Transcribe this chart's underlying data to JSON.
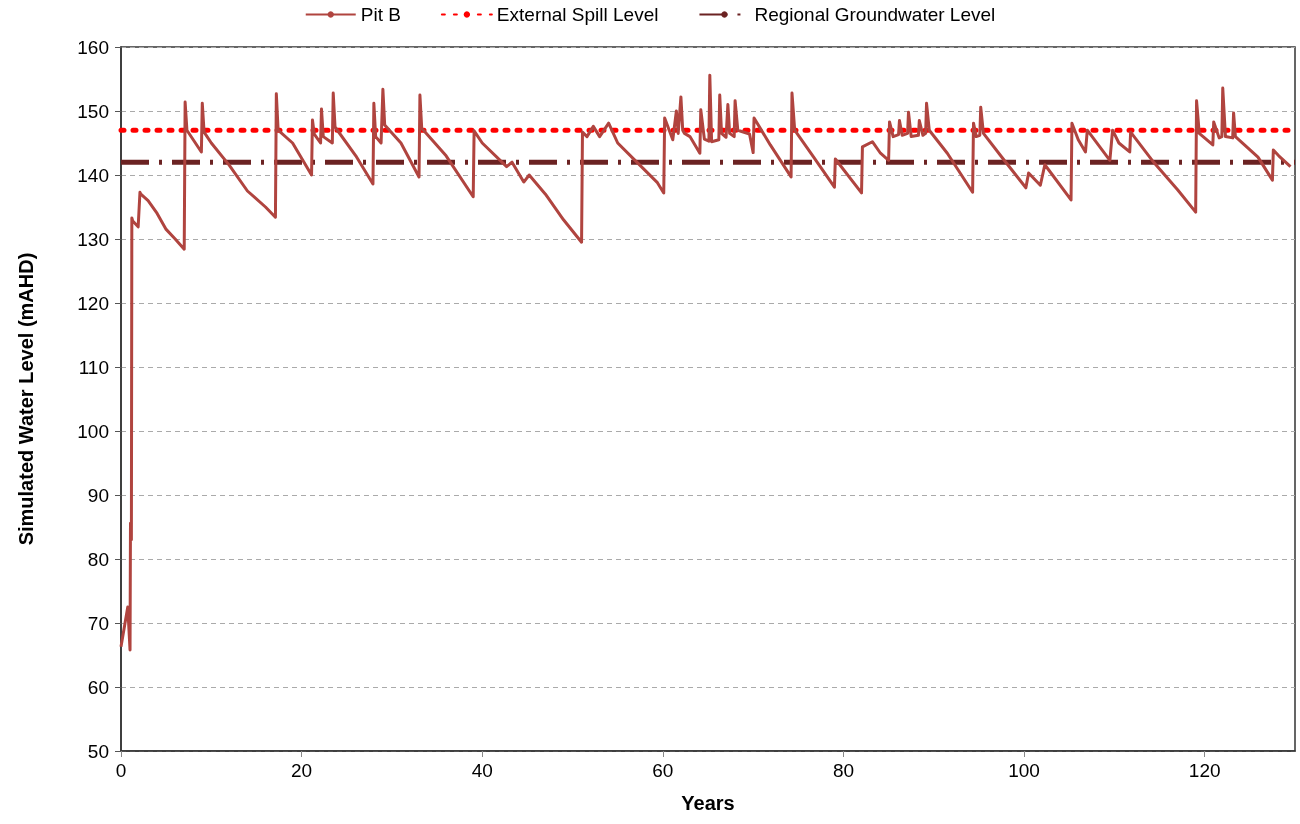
{
  "chart_data": {
    "type": "line",
    "xlabel": "Years",
    "ylabel": "Simulated Water Level (mAHD)",
    "xlim": [
      0,
      130
    ],
    "xticks": [
      0,
      20,
      40,
      60,
      80,
      100,
      120
    ],
    "ylim": [
      50,
      160
    ],
    "yticks": [
      50,
      60,
      70,
      80,
      90,
      100,
      110,
      120,
      130,
      140,
      150,
      160
    ],
    "grid": "y",
    "legend": "top",
    "marker": "none",
    "series": [
      {
        "name": "Pit B",
        "color": "#b0443f",
        "line_style": "solid",
        "x": [
          0,
          0.75,
          1.0,
          1.05,
          1.15,
          1.2,
          1.3,
          1.9,
          2.1,
          2.2,
          3,
          4,
          5,
          6,
          7,
          7.1,
          7.3,
          8,
          8.9,
          9.0,
          9.2,
          10,
          12,
          14,
          16,
          17.1,
          17.2,
          17.4,
          19,
          21.1,
          21.2,
          21.4,
          22.1,
          22.2,
          22.4,
          23.4,
          23.5,
          23.7,
          26,
          27.9,
          28.0,
          28.2,
          28.8,
          29.0,
          29.2,
          31,
          33.0,
          33.1,
          33.3,
          36,
          39.0,
          39.1,
          40,
          42.7,
          43.3,
          44.6,
          45.2,
          47,
          49,
          51.0,
          51.1,
          51.6,
          52.3,
          53,
          54,
          55,
          57.2,
          59.4,
          60.1,
          60.2,
          61.1,
          61.5,
          61.7,
          62.0,
          62.2,
          62.4,
          63.0,
          64.1,
          64.2,
          64.6,
          65.1,
          65.2,
          65.4,
          66.2,
          66.3,
          66.5,
          67.0,
          67.2,
          67.4,
          67.9,
          68.0,
          68.3,
          69.6,
          70.0,
          70.1,
          71.9,
          74.2,
          74.3,
          74.6,
          76.7,
          79.0,
          79.1,
          82.0,
          82.1,
          83.2,
          84.1,
          85.0,
          85.1,
          85.5,
          86.1,
          86.2,
          86.5,
          87.1,
          87.2,
          87.5,
          88.3,
          88.4,
          88.8,
          89.1,
          89.2,
          89.5,
          91.5,
          94.3,
          94.4,
          94.7,
          95.1,
          95.2,
          95.5,
          97.8,
          100.2,
          100.5,
          101.8,
          102.3,
          105.2,
          105.3,
          106,
          106.8,
          107.0,
          109.5,
          109.8,
          110.5,
          111.7,
          111.8,
          114.4,
          117,
          119.0,
          119.1,
          119.4,
          120.9,
          121.0,
          121.6,
          121.9,
          122.0,
          122.3,
          123.1,
          123.2,
          123.4,
          125.9,
          127.5,
          127.6,
          128.2,
          129.5
        ],
        "values": [
          66.3,
          72.5,
          65.8,
          85.6,
          83,
          133.3,
          132.8,
          131.9,
          137.3,
          137,
          136,
          134,
          131.5,
          130,
          128.4,
          151.4,
          147,
          145.5,
          143.6,
          151.2,
          146.7,
          145,
          141.5,
          137.5,
          135,
          133.4,
          152.7,
          147,
          145,
          140,
          148.6,
          146.4,
          145,
          150.3,
          146,
          145,
          152.8,
          147.5,
          143,
          138.6,
          151.2,
          146,
          145,
          153.4,
          147.8,
          145,
          139.7,
          152.5,
          147.3,
          143,
          136.6,
          146.9,
          145,
          141.3,
          142,
          138.9,
          140,
          137,
          133,
          129.5,
          146.7,
          146,
          147.6,
          146,
          148.1,
          145,
          141.9,
          138.8,
          137.2,
          148.9,
          145.5,
          150,
          146.5,
          152.2,
          147,
          146.5,
          146,
          143.4,
          150.2,
          145.6,
          145.3,
          155.6,
          145.2,
          145.5,
          152.5,
          146.5,
          145.9,
          151,
          146.5,
          146,
          151.6,
          147,
          146.4,
          143.5,
          148.9,
          144.7,
          139.7,
          152.8,
          147,
          142.8,
          138.1,
          142.5,
          137.2,
          144.4,
          145.2,
          143.4,
          142.3,
          148.3,
          146,
          146.3,
          148.5,
          146.2,
          146.5,
          149.8,
          146,
          146.2,
          148.5,
          146.2,
          146.5,
          151.2,
          147,
          143.4,
          137.3,
          148.1,
          146,
          146.2,
          150.6,
          146.5,
          142.3,
          138,
          140.3,
          138.4,
          141.6,
          136.1,
          148.1,
          145.5,
          143.6,
          147,
          142.3,
          147,
          145,
          143.6,
          146.7,
          141.9,
          137.7,
          134.2,
          151.6,
          146.5,
          144.7,
          148.3,
          145.8,
          146,
          153.6,
          146,
          145.8,
          149.7,
          146,
          142.8,
          139.2,
          143.9,
          143,
          141.3
        ]
      },
      {
        "name": "External Spill Level",
        "color": "#ff0000",
        "line_style": "dotted",
        "x": [
          0,
          130
        ],
        "values": [
          147,
          147
        ]
      },
      {
        "name": "Regional Groundwater Level",
        "color": "#6b2222",
        "line_style": "dashed",
        "x": [
          0,
          130
        ],
        "values": [
          142,
          142
        ]
      }
    ]
  }
}
